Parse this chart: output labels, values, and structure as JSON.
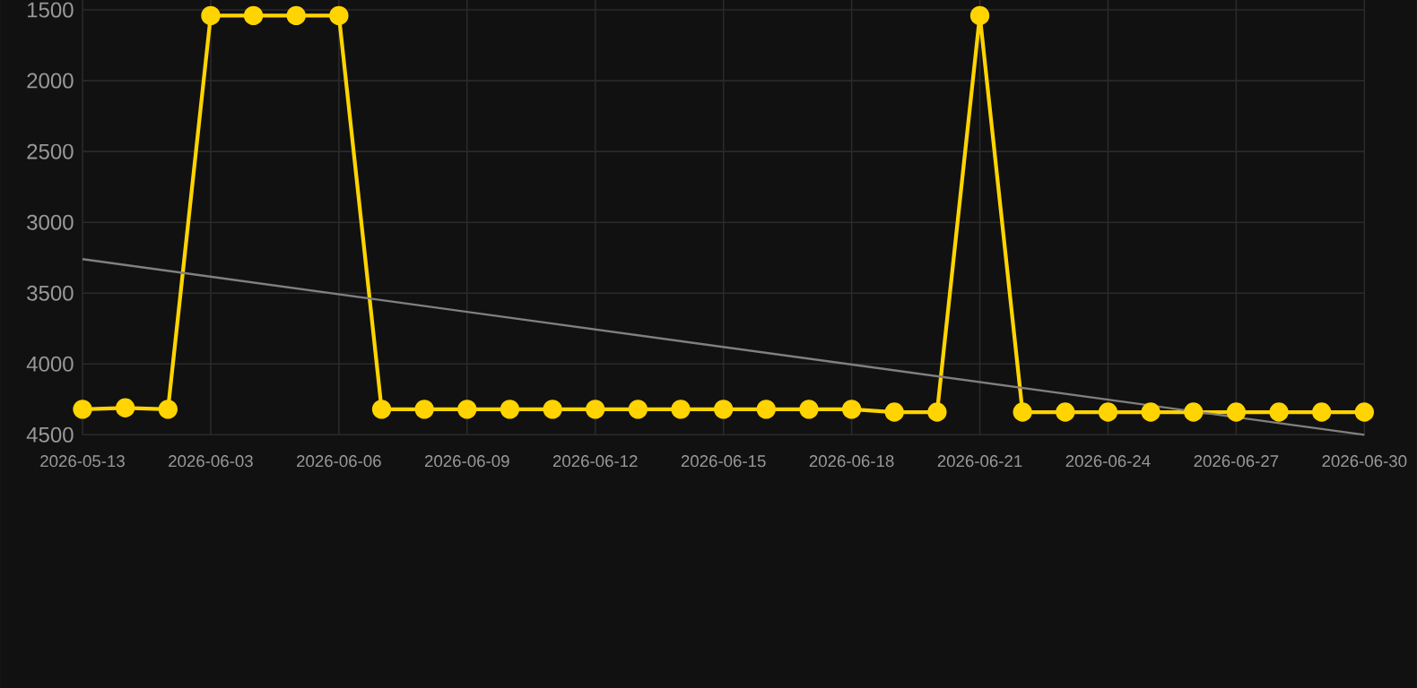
{
  "chart_data": {
    "type": "line",
    "categories": [
      "2026-05-13",
      null,
      null,
      "2026-06-03",
      null,
      null,
      "2026-06-06",
      null,
      null,
      "2026-06-09",
      null,
      null,
      "2026-06-12",
      null,
      null,
      "2026-06-15",
      null,
      null,
      "2026-06-18",
      null,
      null,
      "2026-06-21",
      null,
      null,
      "2026-06-24",
      null,
      null,
      "2026-06-27",
      null,
      null,
      "2026-06-30"
    ],
    "series": [
      {
        "color": "#ffd400",
        "marker": "circle",
        "values": [
          4320,
          4310,
          4320,
          1540,
          1540,
          1540,
          1540,
          4320,
          4320,
          4320,
          4320,
          4320,
          4320,
          4320,
          4320,
          4320,
          4320,
          4320,
          4320,
          4340,
          4340,
          1540,
          4340,
          4340,
          4340,
          4340,
          4340,
          4340,
          4340,
          4340,
          4340
        ]
      },
      {
        "type": "line",
        "color": "#808080",
        "marker": "none",
        "values": [
          3260,
          null,
          null,
          null,
          null,
          null,
          null,
          null,
          null,
          null,
          null,
          null,
          null,
          null,
          null,
          null,
          null,
          null,
          null,
          null,
          null,
          null,
          null,
          null,
          null,
          null,
          null,
          null,
          null,
          null,
          4500
        ]
      }
    ],
    "ylim": [
      4500,
      1430
    ],
    "yticks": [
      1500,
      2000,
      2500,
      3000,
      3500,
      4000,
      4500
    ],
    "grid": true
  }
}
